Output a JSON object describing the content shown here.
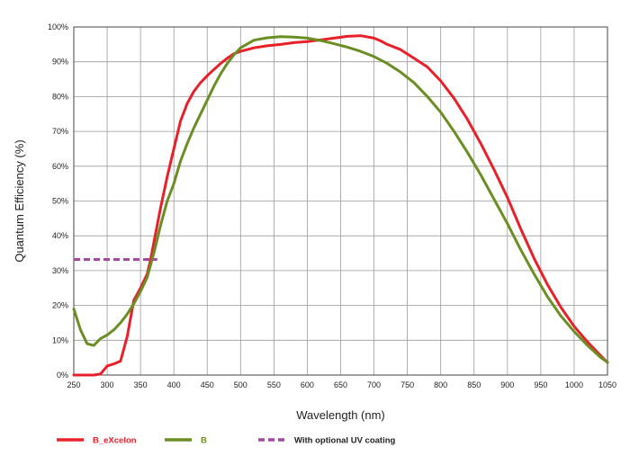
{
  "chart_data": {
    "type": "line",
    "xlabel": "Wavelength (nm)",
    "ylabel": "Quantum Efficiency (%)",
    "xlim": [
      250,
      1050
    ],
    "ylim": [
      0,
      100
    ],
    "x_ticks": [
      "250",
      "300",
      "350",
      "400",
      "450",
      "500",
      "550",
      "600",
      "650",
      "700",
      "750",
      "800",
      "850",
      "900",
      "950",
      "1000",
      "1050"
    ],
    "y_ticks": [
      "0%",
      "10%",
      "20%",
      "30%",
      "40%",
      "50%",
      "60%",
      "70%",
      "80%",
      "90%",
      "100%"
    ],
    "grid": true,
    "legend_position": "bottom",
    "series": [
      {
        "name": "B_eXcelon",
        "color": "#e8202a",
        "dash": false,
        "legend_text_color": "#e8202a",
        "points": [
          [
            250,
            0
          ],
          [
            260,
            0
          ],
          [
            270,
            0
          ],
          [
            280,
            0
          ],
          [
            290,
            0.3
          ],
          [
            300,
            2.6
          ],
          [
            310,
            3.2
          ],
          [
            320,
            4
          ],
          [
            330,
            11
          ],
          [
            340,
            21.5
          ],
          [
            350,
            25
          ],
          [
            360,
            29
          ],
          [
            365,
            33
          ],
          [
            370,
            38
          ],
          [
            380,
            48
          ],
          [
            390,
            57
          ],
          [
            400,
            65
          ],
          [
            410,
            73
          ],
          [
            420,
            78
          ],
          [
            430,
            81.5
          ],
          [
            440,
            84
          ],
          [
            450,
            86
          ],
          [
            460,
            87.8
          ],
          [
            470,
            89.5
          ],
          [
            480,
            91
          ],
          [
            490,
            92.3
          ],
          [
            500,
            93
          ],
          [
            520,
            94
          ],
          [
            540,
            94.6
          ],
          [
            560,
            95
          ],
          [
            580,
            95.5
          ],
          [
            600,
            95.8
          ],
          [
            620,
            96.3
          ],
          [
            640,
            96.8
          ],
          [
            660,
            97.3
          ],
          [
            680,
            97.5
          ],
          [
            700,
            96.8
          ],
          [
            710,
            96
          ],
          [
            720,
            95
          ],
          [
            740,
            93.5
          ],
          [
            760,
            91
          ],
          [
            780,
            88.5
          ],
          [
            800,
            84.5
          ],
          [
            820,
            79.5
          ],
          [
            840,
            73.5
          ],
          [
            860,
            66.5
          ],
          [
            880,
            59
          ],
          [
            900,
            51
          ],
          [
            920,
            42
          ],
          [
            940,
            33.5
          ],
          [
            960,
            26
          ],
          [
            980,
            19.5
          ],
          [
            1000,
            14
          ],
          [
            1020,
            9.5
          ],
          [
            1040,
            5.5
          ],
          [
            1050,
            3.6
          ]
        ]
      },
      {
        "name": "B",
        "color": "#6b8e23",
        "dash": false,
        "legend_text_color": "#6b8e23",
        "points": [
          [
            250,
            19
          ],
          [
            260,
            13
          ],
          [
            270,
            9
          ],
          [
            280,
            8.5
          ],
          [
            290,
            10.5
          ],
          [
            300,
            11.5
          ],
          [
            310,
            13
          ],
          [
            320,
            15
          ],
          [
            330,
            17.5
          ],
          [
            340,
            20.5
          ],
          [
            350,
            24
          ],
          [
            360,
            28
          ],
          [
            370,
            35
          ],
          [
            380,
            43
          ],
          [
            390,
            50
          ],
          [
            400,
            55
          ],
          [
            410,
            61.5
          ],
          [
            420,
            66.5
          ],
          [
            430,
            71
          ],
          [
            440,
            75
          ],
          [
            450,
            79
          ],
          [
            460,
            83
          ],
          [
            470,
            86.5
          ],
          [
            480,
            89.5
          ],
          [
            490,
            92
          ],
          [
            500,
            94
          ],
          [
            520,
            96.2
          ],
          [
            540,
            96.9
          ],
          [
            560,
            97.2
          ],
          [
            580,
            97.1
          ],
          [
            600,
            96.8
          ],
          [
            620,
            96.1
          ],
          [
            640,
            95.2
          ],
          [
            660,
            94.2
          ],
          [
            680,
            93
          ],
          [
            700,
            91.5
          ],
          [
            720,
            89.5
          ],
          [
            740,
            87
          ],
          [
            760,
            84
          ],
          [
            780,
            80
          ],
          [
            800,
            75.5
          ],
          [
            820,
            70
          ],
          [
            840,
            64
          ],
          [
            860,
            57.5
          ],
          [
            880,
            50.5
          ],
          [
            900,
            43.5
          ],
          [
            920,
            36
          ],
          [
            940,
            29
          ],
          [
            960,
            22.5
          ],
          [
            980,
            17
          ],
          [
            1000,
            12.5
          ],
          [
            1020,
            8.5
          ],
          [
            1040,
            5
          ],
          [
            1050,
            3.7
          ]
        ]
      },
      {
        "name": "With optional UV coating",
        "color": "#a347a1",
        "dash": true,
        "legend_text_color": "#222222",
        "points": [
          [
            250,
            33.2
          ],
          [
            375,
            33.2
          ]
        ]
      }
    ]
  }
}
